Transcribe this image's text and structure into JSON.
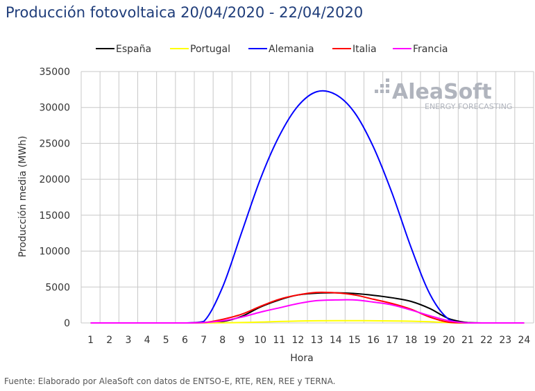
{
  "title": "Producción fotovoltaica 20/04/2020 - 22/04/2020",
  "source": "Fuente: Elaborado por AleaSoft con datos de ENTSO-E, RTE, REN, REE y TERNA.",
  "logo": {
    "name": "AleaSoft",
    "tagline": "ENERGY FORECASTING"
  },
  "chart_data": {
    "type": "line",
    "xlabel": "Hora",
    "ylabel": "Producción media (MWh)",
    "x": [
      1,
      2,
      3,
      4,
      5,
      6,
      7,
      8,
      9,
      10,
      11,
      12,
      13,
      14,
      15,
      16,
      17,
      18,
      19,
      20,
      21,
      22,
      23,
      24
    ],
    "ylim": [
      0,
      35000
    ],
    "yticks": [
      0,
      5000,
      10000,
      15000,
      20000,
      25000,
      30000,
      35000
    ],
    "grid": true,
    "legend_position": "top",
    "series": [
      {
        "name": "España",
        "color": "#000000",
        "values": [
          0,
          0,
          0,
          0,
          0,
          0,
          50,
          200,
          900,
          2200,
          3200,
          3900,
          4150,
          4200,
          4100,
          3850,
          3500,
          3000,
          2000,
          600,
          50,
          0,
          0,
          0
        ]
      },
      {
        "name": "Portugal",
        "color": "#ffff00",
        "values": [
          0,
          0,
          0,
          0,
          0,
          0,
          0,
          20,
          60,
          120,
          200,
          260,
          300,
          320,
          320,
          300,
          280,
          240,
          160,
          50,
          0,
          0,
          0,
          0
        ]
      },
      {
        "name": "Alemania",
        "color": "#0000ff",
        "values": [
          0,
          0,
          0,
          0,
          0,
          0,
          200,
          5000,
          12500,
          20000,
          26000,
          30200,
          32200,
          31800,
          29300,
          24500,
          18000,
          10500,
          4000,
          500,
          0,
          0,
          0,
          0
        ]
      },
      {
        "name": "Italia",
        "color": "#ff0000",
        "values": [
          0,
          0,
          0,
          0,
          0,
          0,
          50,
          500,
          1200,
          2300,
          3300,
          3900,
          4250,
          4200,
          3900,
          3300,
          2700,
          1900,
          800,
          100,
          0,
          0,
          0,
          0
        ]
      },
      {
        "name": "Francia",
        "color": "#ff00ff",
        "values": [
          0,
          0,
          0,
          0,
          0,
          0,
          50,
          300,
          800,
          1500,
          2100,
          2700,
          3100,
          3200,
          3200,
          2900,
          2500,
          1800,
          1000,
          300,
          0,
          0,
          0,
          0
        ]
      }
    ]
  }
}
